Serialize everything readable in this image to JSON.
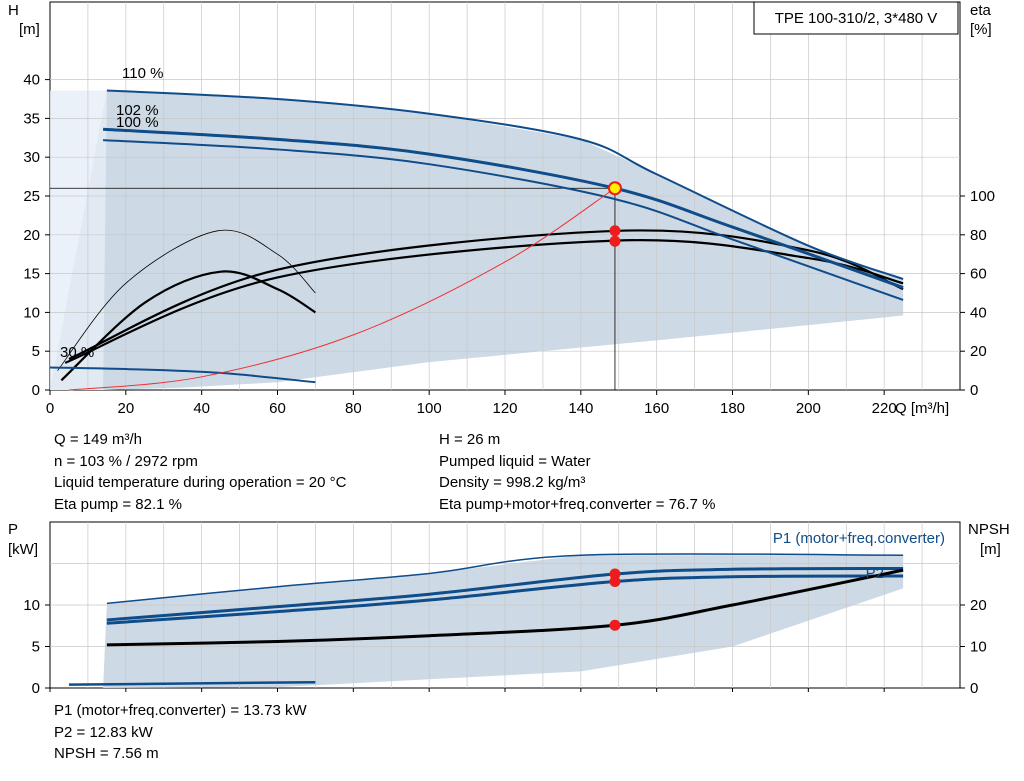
{
  "chart_data": [
    {
      "type": "line",
      "name": "head-eta",
      "model_label": "TPE 100-310/2, 3*480 V",
      "ylabel_left": "H",
      "ylabel_left_unit": "[m]",
      "ylabel_right": "eta",
      "ylabel_right_unit": "[%]",
      "xlabel": "Q [m³/h]",
      "xlim": [
        0,
        240
      ],
      "ylim_left": [
        0,
        50
      ],
      "ylim_right": [
        0,
        200
      ],
      "x_ticks": [
        "0",
        "20",
        "40",
        "60",
        "80",
        "100",
        "120",
        "140",
        "160",
        "180",
        "200",
        "220"
      ],
      "y_ticks_left": [
        "0",
        "5",
        "10",
        "15",
        "20",
        "25",
        "30",
        "35",
        "40"
      ],
      "y_ticks_right": [
        "0",
        "20",
        "40",
        "60",
        "80",
        "100"
      ],
      "grid": true,
      "speed_labels": [
        "110 %",
        "102 %",
        "100 %",
        "30 %"
      ],
      "series": [
        {
          "name": "110 %",
          "x": [
            15,
            60,
            100,
            140,
            160,
            200,
            225
          ],
          "y": [
            38.6,
            37.5,
            35.6,
            32.3,
            27.8,
            18.6,
            14.3
          ]
        },
        {
          "name": "102 %",
          "x": [
            14,
            60,
            100,
            149,
            180,
            225
          ],
          "y": [
            33.6,
            32.3,
            30.4,
            26.0,
            21.0,
            13.2
          ]
        },
        {
          "name": "100 %",
          "x": [
            14,
            60,
            100,
            149,
            180,
            225
          ],
          "y": [
            32.2,
            31.0,
            29.1,
            24.6,
            19.4,
            11.6
          ]
        },
        {
          "name": "30 %",
          "x": [
            0,
            20,
            45,
            70
          ],
          "y": [
            2.9,
            2.7,
            2.2,
            1.0
          ]
        },
        {
          "name": "system",
          "x": [
            5,
            40,
            80,
            120,
            149
          ],
          "y": [
            0,
            1.7,
            7.1,
            16.5,
            26.0
          ]
        }
      ],
      "eta_curves": [
        {
          "x": [
            2,
            20,
            44,
            60,
            70
          ],
          "y": [
            10,
            55,
            82,
            70,
            50
          ]
        },
        {
          "x": [
            3,
            25,
            45,
            60,
            70
          ],
          "y": [
            5,
            45,
            61,
            52,
            40
          ]
        },
        {
          "x": [
            4,
            60,
            149,
            200,
            225
          ],
          "y": [
            14,
            58,
            77,
            68,
            55
          ]
        },
        {
          "x": [
            5,
            60,
            149,
            200,
            225
          ],
          "y": [
            16,
            62,
            82,
            72,
            52
          ]
        }
      ],
      "envelope": {
        "x": [
          0,
          15,
          60,
          100,
          140,
          160,
          200,
          225,
          225,
          160,
          100,
          60,
          35,
          14
        ],
        "y": [
          0,
          38.6,
          37.5,
          35.6,
          32.3,
          27.8,
          18.6,
          14.3,
          9.6,
          6.4,
          3.6,
          1.0,
          0.3,
          0
        ]
      },
      "operating_point": {
        "q": 149,
        "h": 26,
        "eta_pump": 82.1,
        "eta_total": 76.7
      }
    },
    {
      "type": "line",
      "name": "power-npsh",
      "ylabel_left": "P",
      "ylabel_left_unit": "[kW]",
      "ylabel_right": "NPSH",
      "ylabel_right_unit": "[m]",
      "xlim": [
        0,
        240
      ],
      "ylim_left": [
        0,
        20
      ],
      "ylim_right": [
        0,
        40
      ],
      "y_ticks_left": [
        "0",
        "5",
        "10"
      ],
      "y_ticks_right": [
        "0",
        "10",
        "20"
      ],
      "legend_labels": [
        "P1 (motor+freq.converter)",
        "P2"
      ],
      "series": [
        {
          "name": "P1 (motor+freq.converter)",
          "x": [
            15,
            60,
            100,
            149,
            180,
            225
          ],
          "y": [
            8.2,
            9.8,
            11.3,
            13.73,
            14.3,
            14.4
          ]
        },
        {
          "name": "P2",
          "x": [
            15,
            60,
            100,
            149,
            180,
            225
          ],
          "y": [
            7.8,
            9.2,
            10.6,
            12.83,
            13.4,
            13.5
          ]
        },
        {
          "name": "NPSH",
          "x": [
            15,
            60,
            100,
            149,
            180,
            225
          ],
          "y": [
            5.2,
            5.6,
            6.3,
            7.56,
            10.0,
            14.2
          ]
        },
        {
          "name": "P-max",
          "x": [
            15,
            60,
            100,
            140,
            225
          ],
          "y": [
            10.2,
            12.2,
            13.8,
            16.0,
            16.0
          ]
        }
      ],
      "operating_point": {
        "q": 149,
        "p1": 13.73,
        "p2": 12.83,
        "npsh": 7.56
      }
    }
  ],
  "info_mid": {
    "left": [
      "Q = 149 m³/h",
      "n = 103 % / 2972 rpm",
      "Liquid temperature during operation = 20 °C",
      "Eta pump = 82.1 %"
    ],
    "right": [
      "H = 26 m",
      "Pumped liquid = Water",
      "Density = 998.2 kg/m³",
      "Eta pump+motor+freq.converter = 76.7 %"
    ]
  },
  "info_bottom": [
    "P1 (motor+freq.converter) = 13.73 kW",
    "P2 = 12.83 kW",
    "NPSH = 7.56 m"
  ],
  "colors": {
    "curve": "#0f4c8a",
    "envelope": "#cdd9e5",
    "operating": "#ee1c1c",
    "system": "#ee3333",
    "grid": "#c8c8c8"
  }
}
